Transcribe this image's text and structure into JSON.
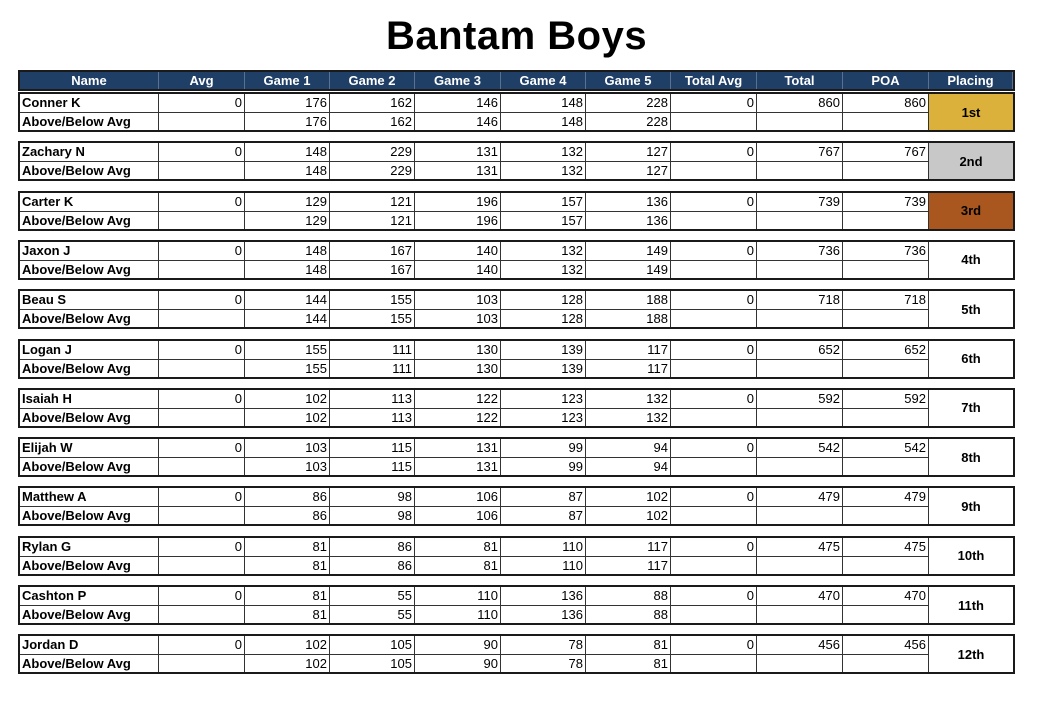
{
  "title": "Bantam Boys",
  "columns": [
    "Name",
    "Avg",
    "Game 1",
    "Game 2",
    "Game 3",
    "Game 4",
    "Game 5",
    "Total Avg",
    "Total",
    "POA",
    "Placing"
  ],
  "sub_label": "Above/Below Avg",
  "place_colors": {
    "1st": "#dbb13b",
    "2nd": "#c8c8c8",
    "3rd": "#a9571e"
  },
  "players": [
    {
      "name": "Conner K",
      "avg": "0",
      "games": [
        "176",
        "162",
        "146",
        "148",
        "228"
      ],
      "diff": [
        "176",
        "162",
        "146",
        "148",
        "228"
      ],
      "total_avg": "0",
      "total": "860",
      "poa": "860",
      "placing": "1st"
    },
    {
      "name": "Zachary N",
      "avg": "0",
      "games": [
        "148",
        "229",
        "131",
        "132",
        "127"
      ],
      "diff": [
        "148",
        "229",
        "131",
        "132",
        "127"
      ],
      "total_avg": "0",
      "total": "767",
      "poa": "767",
      "placing": "2nd"
    },
    {
      "name": "Carter K",
      "avg": "0",
      "games": [
        "129",
        "121",
        "196",
        "157",
        "136"
      ],
      "diff": [
        "129",
        "121",
        "196",
        "157",
        "136"
      ],
      "total_avg": "0",
      "total": "739",
      "poa": "739",
      "placing": "3rd"
    },
    {
      "name": "Jaxon J",
      "avg": "0",
      "games": [
        "148",
        "167",
        "140",
        "132",
        "149"
      ],
      "diff": [
        "148",
        "167",
        "140",
        "132",
        "149"
      ],
      "total_avg": "0",
      "total": "736",
      "poa": "736",
      "placing": "4th"
    },
    {
      "name": "Beau S",
      "avg": "0",
      "games": [
        "144",
        "155",
        "103",
        "128",
        "188"
      ],
      "diff": [
        "144",
        "155",
        "103",
        "128",
        "188"
      ],
      "total_avg": "0",
      "total": "718",
      "poa": "718",
      "placing": "5th"
    },
    {
      "name": "Logan J",
      "avg": "0",
      "games": [
        "155",
        "111",
        "130",
        "139",
        "117"
      ],
      "diff": [
        "155",
        "111",
        "130",
        "139",
        "117"
      ],
      "total_avg": "0",
      "total": "652",
      "poa": "652",
      "placing": "6th"
    },
    {
      "name": "Isaiah H",
      "avg": "0",
      "games": [
        "102",
        "113",
        "122",
        "123",
        "132"
      ],
      "diff": [
        "102",
        "113",
        "122",
        "123",
        "132"
      ],
      "total_avg": "0",
      "total": "592",
      "poa": "592",
      "placing": "7th"
    },
    {
      "name": "Elijah W",
      "avg": "0",
      "games": [
        "103",
        "115",
        "131",
        "99",
        "94"
      ],
      "diff": [
        "103",
        "115",
        "131",
        "99",
        "94"
      ],
      "total_avg": "0",
      "total": "542",
      "poa": "542",
      "placing": "8th"
    },
    {
      "name": "Matthew A",
      "avg": "0",
      "games": [
        "86",
        "98",
        "106",
        "87",
        "102"
      ],
      "diff": [
        "86",
        "98",
        "106",
        "87",
        "102"
      ],
      "total_avg": "0",
      "total": "479",
      "poa": "479",
      "placing": "9th"
    },
    {
      "name": "Rylan G",
      "avg": "0",
      "games": [
        "81",
        "86",
        "81",
        "110",
        "117"
      ],
      "diff": [
        "81",
        "86",
        "81",
        "110",
        "117"
      ],
      "total_avg": "0",
      "total": "475",
      "poa": "475",
      "placing": "10th"
    },
    {
      "name": "Cashton P",
      "avg": "0",
      "games": [
        "81",
        "55",
        "110",
        "136",
        "88"
      ],
      "diff": [
        "81",
        "55",
        "110",
        "136",
        "88"
      ],
      "total_avg": "0",
      "total": "470",
      "poa": "470",
      "placing": "11th"
    },
    {
      "name": "Jordan D",
      "avg": "0",
      "games": [
        "102",
        "105",
        "90",
        "78",
        "81"
      ],
      "diff": [
        "102",
        "105",
        "90",
        "78",
        "81"
      ],
      "total_avg": "0",
      "total": "456",
      "poa": "456",
      "placing": "12th"
    }
  ]
}
